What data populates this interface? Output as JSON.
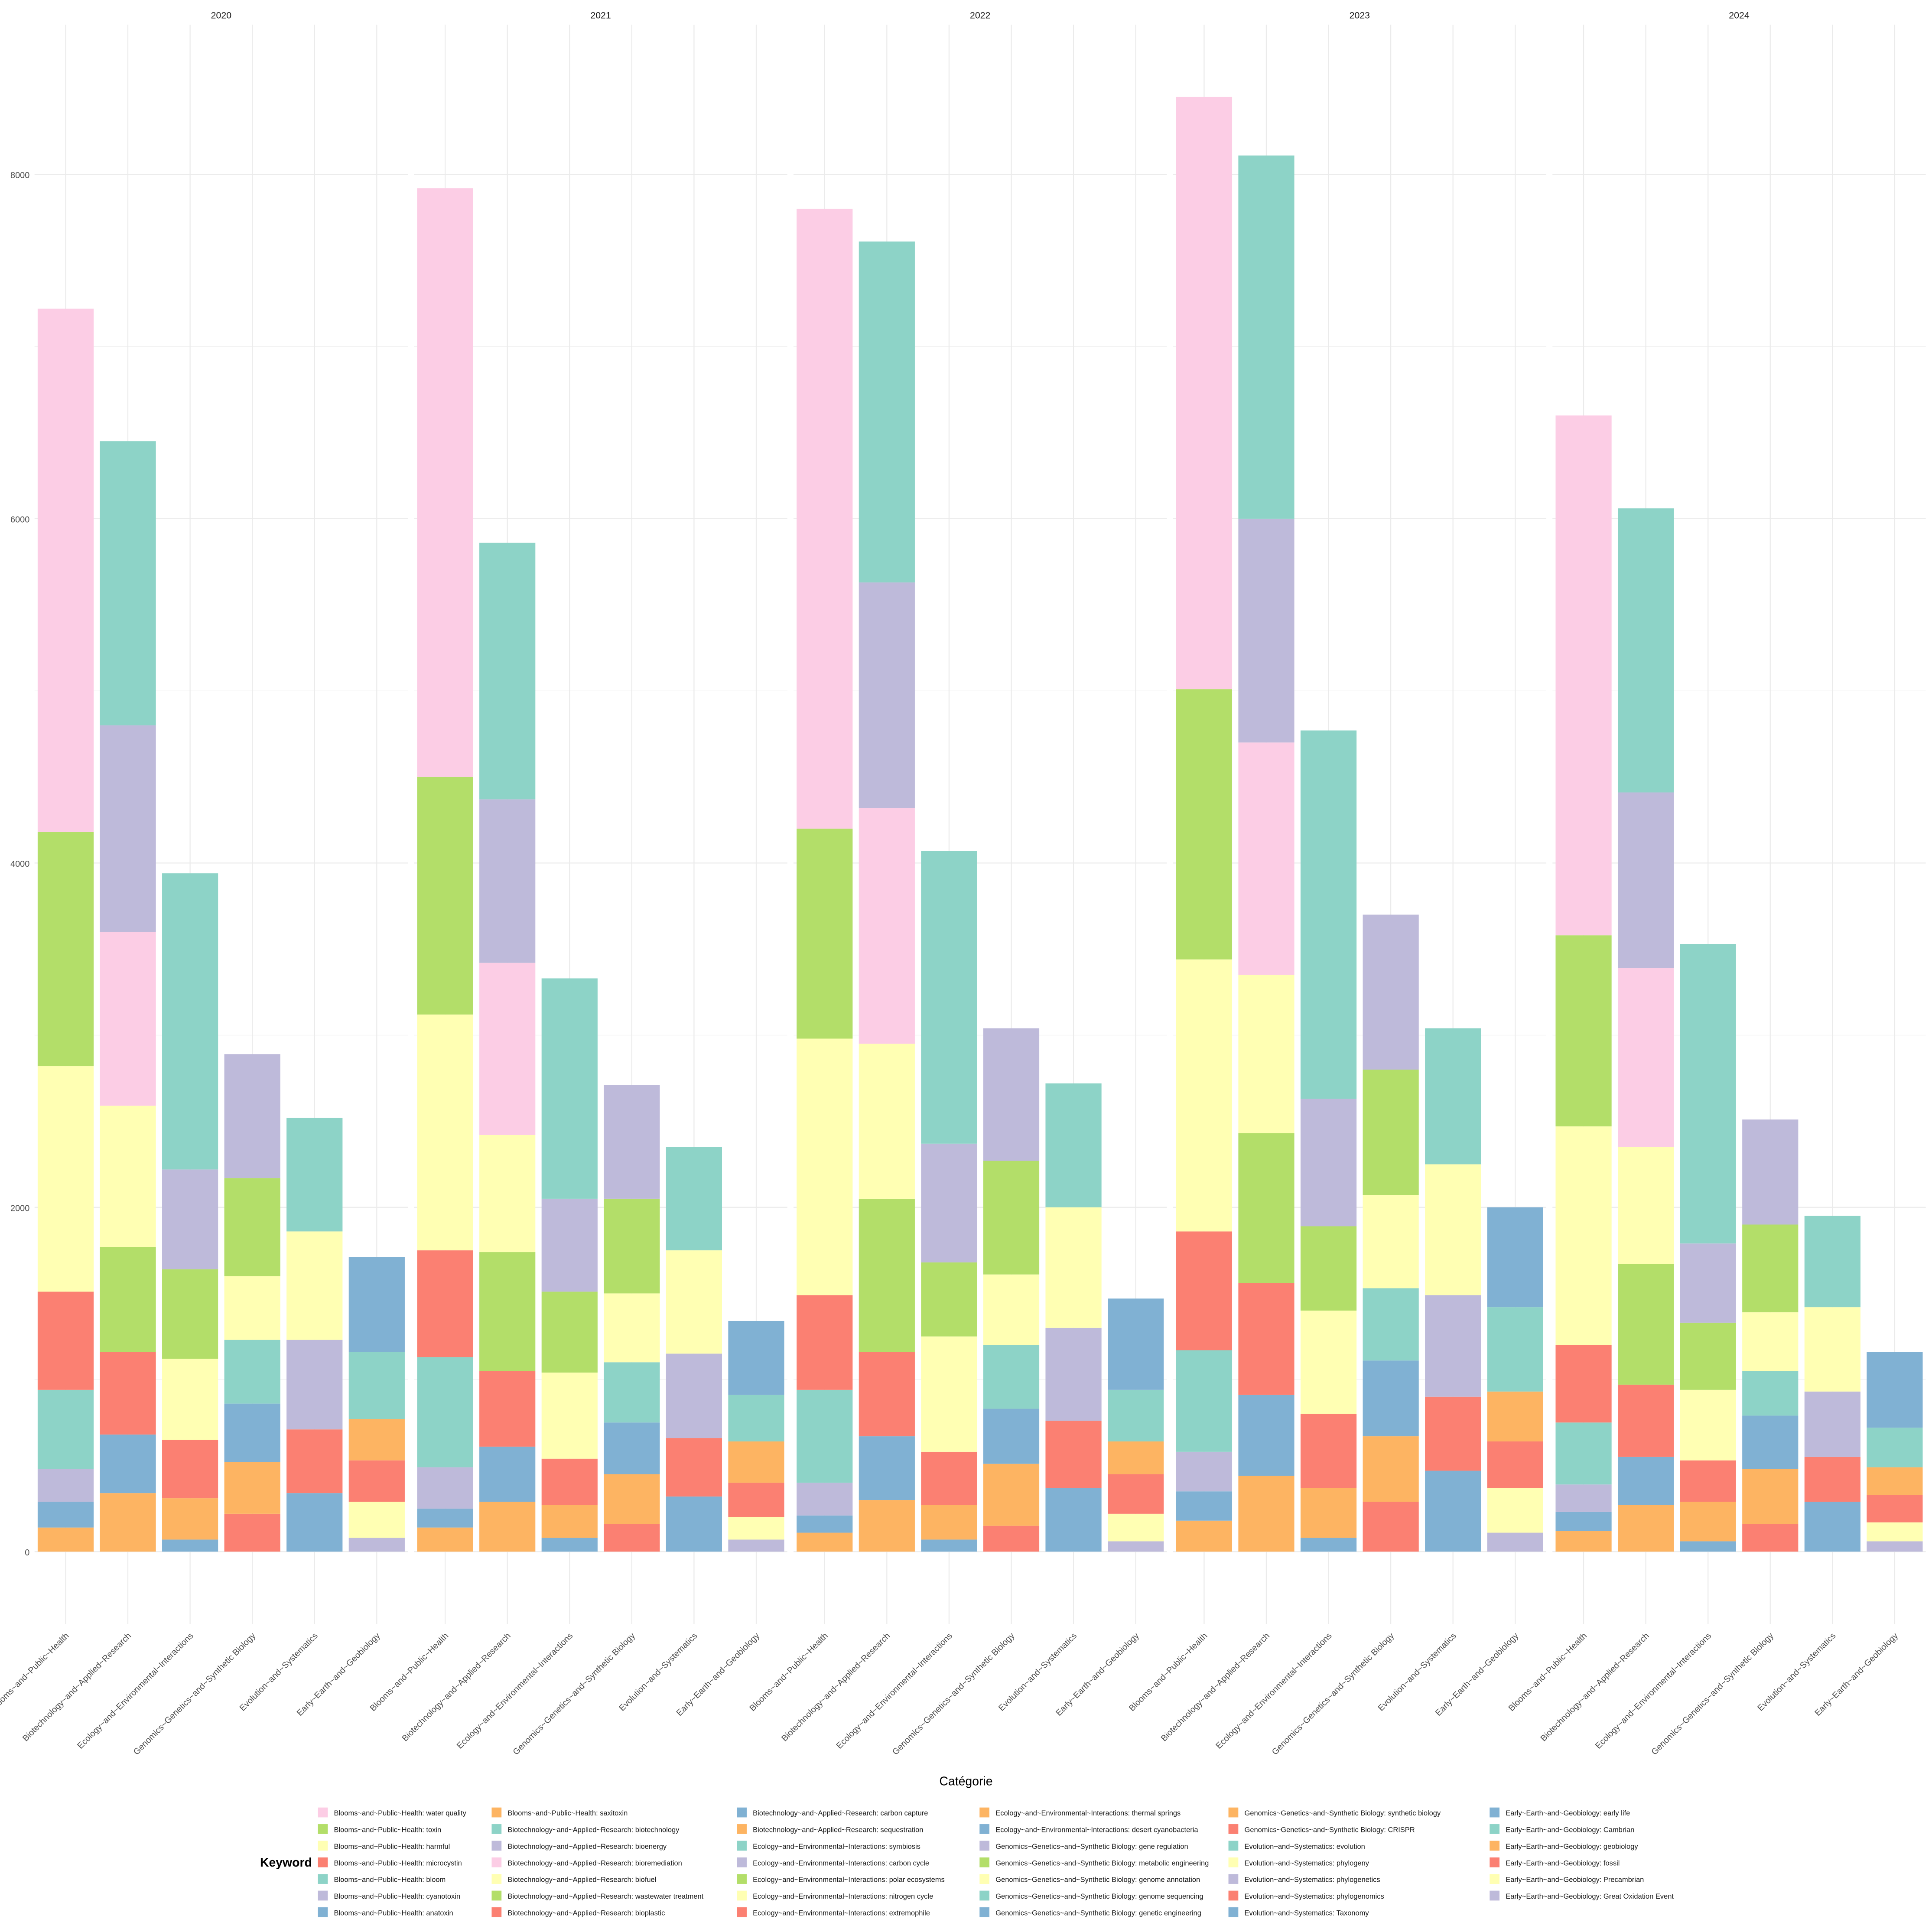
{
  "chart_data": {
    "type": "bar",
    "stacked": true,
    "x_label": "Catégorie",
    "legend_title": "Keyword",
    "facets": [
      "2020",
      "2021",
      "2022",
      "2023",
      "2024"
    ],
    "ylim": [
      -420,
      8870
    ],
    "yticks": [
      0,
      2000,
      4000,
      6000,
      8000
    ],
    "grid": true,
    "legend_position": "bottom",
    "groups": [
      {
        "category": "Blooms~and~Public~Health",
        "series": [
          {
            "name": "Blooms~and~Public~Health: water quality",
            "color": "#FCCDE5",
            "values": [
              3040,
              3420,
              3600,
              3440,
              3020
            ]
          },
          {
            "name": "Blooms~and~Public~Health: toxin",
            "color": "#B3DE69",
            "values": [
              1360,
              1380,
              1220,
              1570,
              1110
            ]
          },
          {
            "name": "Blooms~and~Public~Health: harmful",
            "color": "#FFFFB3",
            "values": [
              1310,
              1370,
              1490,
              1580,
              1270
            ]
          },
          {
            "name": "Blooms~and~Public~Health: microcystin",
            "color": "#FB8072",
            "values": [
              570,
              620,
              550,
              690,
              450
            ]
          },
          {
            "name": "Blooms~and~Public~Health: bloom",
            "color": "#8DD3C7",
            "values": [
              460,
              640,
              540,
              590,
              360
            ]
          },
          {
            "name": "Blooms~and~Public~Health: cyanotoxin",
            "color": "#BEBADA",
            "values": [
              190,
              240,
              190,
              230,
              160
            ]
          },
          {
            "name": "Blooms~and~Public~Health: anatoxin",
            "color": "#80B1D3",
            "values": [
              150,
              110,
              100,
              170,
              110
            ]
          },
          {
            "name": "Blooms~and~Public~Health: saxitoxin",
            "color": "#FDB462",
            "values": [
              140,
              140,
              110,
              180,
              120
            ]
          }
        ]
      },
      {
        "category": "Biotechnology~and~Applied~Research",
        "series": [
          {
            "name": "Biotechnology~and~Applied~Research: biotechnology",
            "color": "#8DD3C7",
            "values": [
              1650,
              1490,
              1980,
              2110,
              1650
            ]
          },
          {
            "name": "Biotechnology~and~Applied~Research: bioenergy",
            "color": "#BEBADA",
            "values": [
              1200,
              950,
              1310,
              1300,
              1020
            ]
          },
          {
            "name": "Biotechnology~and~Applied~Research: bioremediation",
            "color": "#FCCDE5",
            "values": [
              1010,
              1000,
              1370,
              1350,
              1040
            ]
          },
          {
            "name": "Biotechnology~and~Applied~Research: biofuel",
            "color": "#FFFFB3",
            "values": [
              820,
              680,
              900,
              920,
              680
            ]
          },
          {
            "name": "Biotechnology~and~Applied~Research: wastewater treatment",
            "color": "#B3DE69",
            "values": [
              610,
              690,
              890,
              870,
              700
            ]
          },
          {
            "name": "Biotechnology~and~Applied~Research: bioplastic",
            "color": "#FB8072",
            "values": [
              480,
              440,
              490,
              650,
              420
            ]
          },
          {
            "name": "Biotechnology~and~Applied~Research: carbon capture",
            "color": "#80B1D3",
            "values": [
              340,
              320,
              370,
              470,
              280
            ]
          },
          {
            "name": "Biotechnology~and~Applied~Research: sequestration",
            "color": "#FDB462",
            "values": [
              340,
              290,
              300,
              440,
              270
            ]
          }
        ]
      },
      {
        "category": "Ecology~and~Environmental~Interactions",
        "series": [
          {
            "name": "Ecology~and~Environmental~Interactions: symbiosis",
            "color": "#8DD3C7",
            "values": [
              1720,
              1280,
              1700,
              2140,
              1740
            ]
          },
          {
            "name": "Ecology~and~Environmental~Interactions: carbon cycle",
            "color": "#BEBADA",
            "values": [
              580,
              540,
              690,
              740,
              460
            ]
          },
          {
            "name": "Ecology~and~Environmental~Interactions: polar ecosystems",
            "color": "#B3DE69",
            "values": [
              520,
              470,
              430,
              490,
              390
            ]
          },
          {
            "name": "Ecology~and~Environmental~Interactions: nitrogen cycle",
            "color": "#FFFFB3",
            "values": [
              470,
              500,
              670,
              600,
              410
            ]
          },
          {
            "name": "Ecology~and~Environmental~Interactions: extremophile",
            "color": "#FB8072",
            "values": [
              340,
              270,
              310,
              430,
              240
            ]
          },
          {
            "name": "Ecology~and~Environmental~Interactions: thermal springs",
            "color": "#FDB462",
            "values": [
              240,
              190,
              200,
              290,
              230
            ]
          },
          {
            "name": "Ecology~and~Environmental~Interactions: desert cyanobacteria",
            "color": "#80B1D3",
            "values": [
              70,
              80,
              70,
              80,
              60
            ]
          }
        ]
      },
      {
        "category": "Genomics~Genetics~and~Synthetic Biology",
        "series": [
          {
            "name": "Genomics~Genetics~and~Synthetic Biology: gene regulation",
            "color": "#BEBADA",
            "values": [
              720,
              660,
              770,
              900,
              610
            ]
          },
          {
            "name": "Genomics~Genetics~and~Synthetic Biology: metabolic engineering",
            "color": "#B3DE69",
            "values": [
              570,
              550,
              660,
              730,
              510
            ]
          },
          {
            "name": "Genomics~Genetics~and~Synthetic Biology: genome annotation",
            "color": "#FFFFB3",
            "values": [
              370,
              400,
              410,
              540,
              340
            ]
          },
          {
            "name": "Genomics~Genetics~and~Synthetic Biology: genome sequencing",
            "color": "#8DD3C7",
            "values": [
              370,
              350,
              370,
              420,
              260
            ]
          },
          {
            "name": "Genomics~Genetics~and~Synthetic Biology: genetic engineering",
            "color": "#80B1D3",
            "values": [
              340,
              300,
              320,
              440,
              310
            ]
          },
          {
            "name": "Genomics~Genetics~and~Synthetic Biology: synthetic biology",
            "color": "#FDB462",
            "values": [
              300,
              290,
              360,
              380,
              320
            ]
          },
          {
            "name": "Genomics~Genetics~and~Synthetic Biology: CRISPR",
            "color": "#FB8072",
            "values": [
              220,
              160,
              150,
              290,
              160
            ]
          }
        ]
      },
      {
        "category": "Evolution~and~Systematics",
        "series": [
          {
            "name": "Evolution~and~Systematics: evolution",
            "color": "#8DD3C7",
            "values": [
              660,
              600,
              720,
              790,
              530
            ]
          },
          {
            "name": "Evolution~and~Systematics: phylogeny",
            "color": "#FFFFB3",
            "values": [
              630,
              600,
              700,
              760,
              490
            ]
          },
          {
            "name": "Evolution~and~Systematics: phylogenetics",
            "color": "#BEBADA",
            "values": [
              520,
              490,
              540,
              590,
              380
            ]
          },
          {
            "name": "Evolution~and~Systematics: phylogenomics",
            "color": "#FB8072",
            "values": [
              370,
              340,
              390,
              430,
              260
            ]
          },
          {
            "name": "Evolution~and~Systematics: Taxonomy",
            "color": "#80B1D3",
            "values": [
              340,
              320,
              370,
              470,
              290
            ]
          }
        ]
      },
      {
        "category": "Early~Earth~and~Geobiology",
        "series": [
          {
            "name": "Early~Earth~and~Geobiology: early life",
            "color": "#80B1D3",
            "values": [
              550,
              430,
              530,
              580,
              440
            ]
          },
          {
            "name": "Early~Earth~and~Geobiology: Cambrian",
            "color": "#8DD3C7",
            "values": [
              390,
              270,
              300,
              490,
              230
            ]
          },
          {
            "name": "Early~Earth~and~Geobiology: geobiology",
            "color": "#FDB462",
            "values": [
              240,
              240,
              190,
              290,
              160
            ]
          },
          {
            "name": "Early~Earth~and~Geobiology: fossil",
            "color": "#FB8072",
            "values": [
              240,
              200,
              230,
              270,
              160
            ]
          },
          {
            "name": "Early~Earth~and~Geobiology: Precambrian",
            "color": "#FFFFB3",
            "values": [
              210,
              130,
              160,
              260,
              110
            ]
          },
          {
            "name": "Early~Earth~and~Geobiology: Great Oxidation Event",
            "color": "#BEBADA",
            "values": [
              80,
              70,
              60,
              110,
              60
            ]
          }
        ]
      }
    ]
  }
}
